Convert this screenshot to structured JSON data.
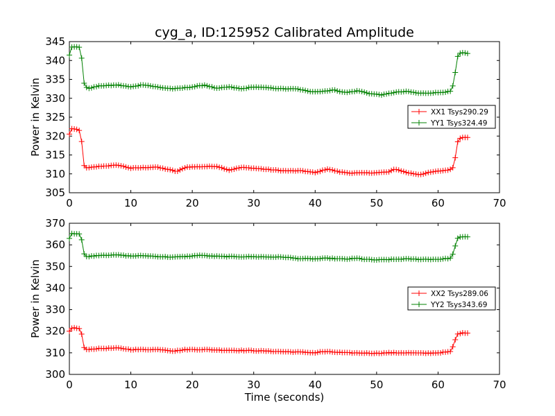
{
  "figure": {
    "title": "cyg_a, ID:125952 Calibrated Amplitude",
    "xlabel": "Time (seconds)"
  },
  "colors": {
    "xx": "#ff0000",
    "yy": "#008000"
  },
  "chart_data": [
    {
      "type": "line",
      "title": "cyg_a, ID:125952 Calibrated Amplitude",
      "xlabel": "",
      "ylabel": "Power in Kelvin",
      "xlim": [
        0,
        70
      ],
      "ylim": [
        305,
        345
      ],
      "xticks": [
        0,
        10,
        20,
        30,
        40,
        50,
        60,
        70
      ],
      "yticks": [
        305,
        310,
        315,
        320,
        325,
        330,
        335,
        340,
        345
      ],
      "grid": false,
      "legend_position": "right",
      "marker": "+",
      "series": [
        {
          "name": "XX1 Tsys290.29",
          "color": "#ff0000",
          "keypoints": [
            [
              0,
              320.5
            ],
            [
              0.3,
              322
            ],
            [
              1,
              321.8
            ],
            [
              1.9,
              321.3
            ],
            [
              2.2,
              313
            ],
            [
              2.6,
              311.5
            ],
            [
              5,
              312
            ],
            [
              8,
              312.3
            ],
            [
              10,
              311.5
            ],
            [
              14,
              311.8
            ],
            [
              16,
              311.2
            ],
            [
              17.5,
              310.6
            ],
            [
              19,
              311.8
            ],
            [
              24,
              312
            ],
            [
              26,
              311
            ],
            [
              28,
              311.7
            ],
            [
              30,
              311.5
            ],
            [
              32,
              311.2
            ],
            [
              35,
              310.8
            ],
            [
              38,
              310.8
            ],
            [
              40,
              310.3
            ],
            [
              42,
              311.3
            ],
            [
              44,
              310.5
            ],
            [
              46,
              310.2
            ],
            [
              50,
              310.3
            ],
            [
              52,
              310.5
            ],
            [
              53,
              311.3
            ],
            [
              55,
              310.3
            ],
            [
              57,
              309.8
            ],
            [
              59,
              310.5
            ],
            [
              61,
              310.9
            ],
            [
              62.3,
              311.2
            ],
            [
              62.7,
              313
            ],
            [
              63,
              317
            ],
            [
              63.3,
              319.2
            ],
            [
              64,
              319.7
            ],
            [
              65,
              319.7
            ]
          ]
        },
        {
          "name": "YY1 Tsys324.49",
          "color": "#008000",
          "keypoints": [
            [
              0,
              341.5
            ],
            [
              0.3,
              343.5
            ],
            [
              1,
              343.6
            ],
            [
              1.9,
              343.5
            ],
            [
              2.2,
              335
            ],
            [
              2.6,
              333
            ],
            [
              3,
              332.6
            ],
            [
              5,
              333.3
            ],
            [
              8,
              333.5
            ],
            [
              10,
              333
            ],
            [
              12,
              333.6
            ],
            [
              15,
              332.8
            ],
            [
              17,
              332.5
            ],
            [
              20,
              333
            ],
            [
              22,
              333.5
            ],
            [
              24,
              332.6
            ],
            [
              26,
              333
            ],
            [
              28,
              332.5
            ],
            [
              30,
              333
            ],
            [
              35,
              332.5
            ],
            [
              37,
              332.5
            ],
            [
              39,
              331.8
            ],
            [
              41,
              331.8
            ],
            [
              43,
              332.2
            ],
            [
              45,
              331.5
            ],
            [
              47,
              332
            ],
            [
              49,
              331.2
            ],
            [
              51,
              330.9
            ],
            [
              53,
              331.6
            ],
            [
              55,
              331.8
            ],
            [
              57,
              331.3
            ],
            [
              60,
              331.5
            ],
            [
              62,
              331.8
            ],
            [
              62.6,
              334
            ],
            [
              63,
              339.5
            ],
            [
              63.3,
              341.8
            ],
            [
              64,
              342
            ],
            [
              65,
              341.8
            ]
          ]
        }
      ]
    },
    {
      "type": "line",
      "title": "",
      "xlabel": "Time (seconds)",
      "ylabel": "Power in Kelvin",
      "xlim": [
        0,
        70
      ],
      "ylim": [
        300,
        370
      ],
      "xticks": [
        0,
        10,
        20,
        30,
        40,
        50,
        60,
        70
      ],
      "yticks": [
        300,
        310,
        320,
        330,
        340,
        350,
        360,
        370
      ],
      "grid": false,
      "legend_position": "right",
      "marker": "+",
      "series": [
        {
          "name": "XX2 Tsys289.06",
          "color": "#ff0000",
          "keypoints": [
            [
              0,
              320
            ],
            [
              0.3,
              321.5
            ],
            [
              1,
              321.5
            ],
            [
              1.9,
              321
            ],
            [
              2.2,
              314
            ],
            [
              2.5,
              311.5
            ],
            [
              5,
              312
            ],
            [
              8,
              312.2
            ],
            [
              10,
              311.5
            ],
            [
              15,
              311.5
            ],
            [
              17,
              310.8
            ],
            [
              19,
              311.5
            ],
            [
              22,
              311.5
            ],
            [
              25,
              311.2
            ],
            [
              30,
              311
            ],
            [
              35,
              310.5
            ],
            [
              38,
              310.3
            ],
            [
              40,
              310
            ],
            [
              41,
              310.5
            ],
            [
              42,
              310.5
            ],
            [
              45,
              310
            ],
            [
              50,
              309.8
            ],
            [
              52,
              310
            ],
            [
              55,
              310
            ],
            [
              58,
              309.8
            ],
            [
              60,
              310
            ],
            [
              62,
              310.5
            ],
            [
              62.6,
              314
            ],
            [
              63,
              318
            ],
            [
              63.3,
              319
            ],
            [
              65,
              319.3
            ]
          ]
        },
        {
          "name": "YY2 Tsys343.69",
          "color": "#008000",
          "keypoints": [
            [
              0,
              363
            ],
            [
              0.3,
              365.3
            ],
            [
              1,
              365.2
            ],
            [
              1.9,
              365
            ],
            [
              2.2,
              357
            ],
            [
              2.6,
              354.5
            ],
            [
              5,
              355.2
            ],
            [
              8,
              355.3
            ],
            [
              10,
              354.8
            ],
            [
              12,
              355
            ],
            [
              15,
              354.5
            ],
            [
              17,
              354.3
            ],
            [
              20,
              354.8
            ],
            [
              21,
              355.2
            ],
            [
              23,
              354.8
            ],
            [
              25,
              354.6
            ],
            [
              28,
              354.5
            ],
            [
              30,
              354.5
            ],
            [
              35,
              354.3
            ],
            [
              37,
              353.7
            ],
            [
              40,
              353.5
            ],
            [
              42,
              353.8
            ],
            [
              45,
              353.4
            ],
            [
              47,
              353.8
            ],
            [
              48,
              353.3
            ],
            [
              50,
              353
            ],
            [
              52,
              353.2
            ],
            [
              55,
              353.5
            ],
            [
              57,
              353.3
            ],
            [
              60,
              353.3
            ],
            [
              62,
              353.8
            ],
            [
              62.5,
              356
            ],
            [
              63,
              362
            ],
            [
              63.3,
              363.5
            ],
            [
              65,
              363.8
            ]
          ]
        }
      ]
    }
  ]
}
